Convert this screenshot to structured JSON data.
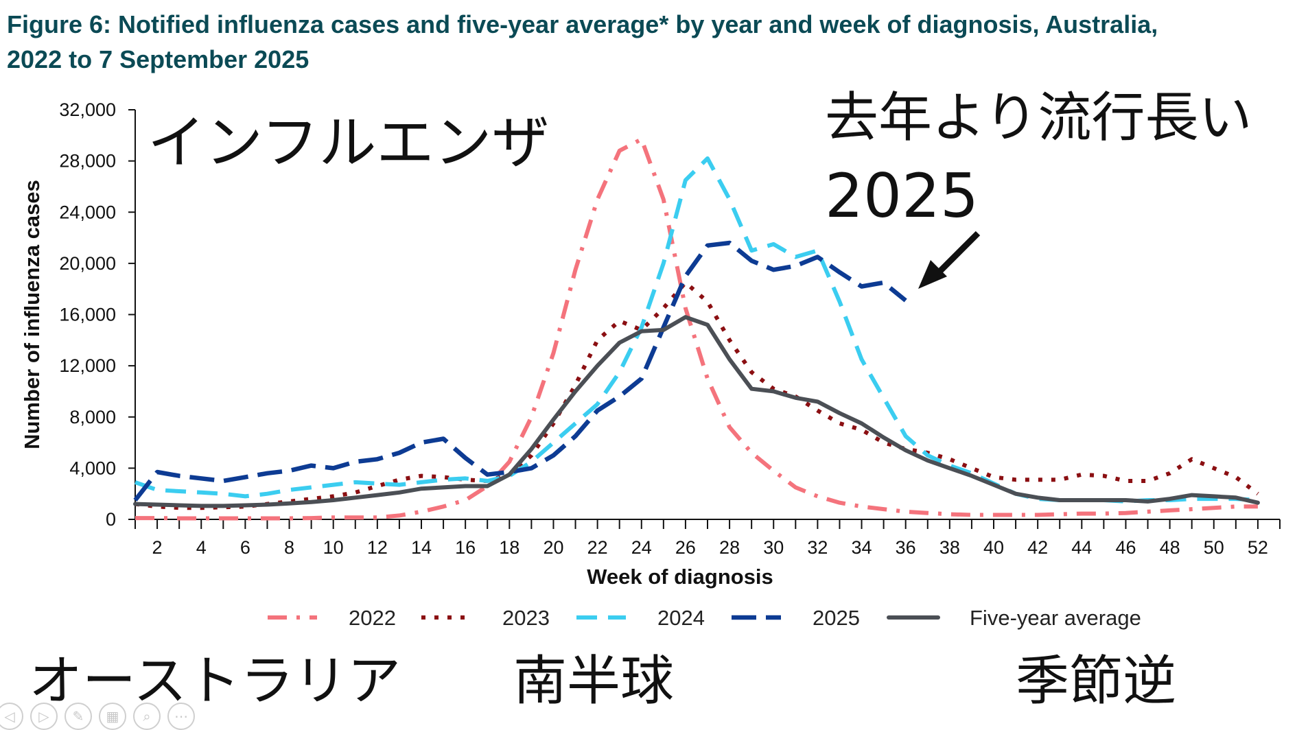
{
  "figure": {
    "title_line1": "Figure 6: Notified influenza cases and five-year average* by year and week of diagnosis, Australia,",
    "title_line2": "2022 to 7 September 2025"
  },
  "overlay": {
    "label_influenza": "インフルエンザ",
    "label_longer": "去年より流行長い",
    "label_2025": "2025",
    "label_australia": "オーストラリア",
    "label_southern": "南半球",
    "label_seasons": "季節逆"
  },
  "toolbar": {
    "icons": [
      "prev-icon",
      "next-icon",
      "pen-icon",
      "slides-icon",
      "zoom-icon",
      "more-icon"
    ],
    "glyphs": [
      "◁",
      "▷",
      "✎",
      "▦",
      "⌕",
      "⋯"
    ]
  },
  "colors": {
    "2022": "#f4737c",
    "2023": "#8b0f12",
    "2024": "#3bcdf0",
    "2025": "#0d3b93",
    "avg": "#4b4f55"
  },
  "chart_data": {
    "type": "line",
    "title": "Notified influenza cases and five-year average* by year and week of diagnosis, Australia, 2022 to 7 September 2025",
    "xlabel": "Week of diagnosis",
    "ylabel": "Number of influenza cases",
    "xlim": [
      1,
      52
    ],
    "ylim": [
      0,
      32000
    ],
    "xticks": [
      2,
      4,
      6,
      8,
      10,
      12,
      14,
      16,
      18,
      20,
      22,
      24,
      26,
      28,
      30,
      32,
      34,
      36,
      38,
      40,
      42,
      44,
      46,
      48,
      50,
      52
    ],
    "yticks": [
      0,
      4000,
      8000,
      12000,
      16000,
      20000,
      24000,
      28000,
      32000
    ],
    "ytick_labels": [
      "0",
      "4,000",
      "8,000",
      "12,000",
      "16,000",
      "20,000",
      "24,000",
      "28,000",
      "32,000"
    ],
    "legend_position": "bottom",
    "series": [
      {
        "name": "2022",
        "style": "dashdot",
        "x": [
          1,
          2,
          3,
          4,
          5,
          6,
          7,
          8,
          9,
          10,
          11,
          12,
          13,
          14,
          15,
          16,
          17,
          18,
          19,
          20,
          21,
          22,
          23,
          24,
          25,
          26,
          27,
          28,
          29,
          30,
          31,
          32,
          33,
          34,
          35,
          36,
          37,
          38,
          39,
          40,
          41,
          42,
          43,
          44,
          45,
          46,
          47,
          48,
          49,
          50,
          51,
          52
        ],
        "values": [
          100,
          100,
          80,
          80,
          80,
          80,
          80,
          80,
          100,
          150,
          150,
          150,
          300,
          600,
          1000,
          1500,
          2600,
          4500,
          8000,
          13000,
          19500,
          25000,
          28800,
          29700,
          25000,
          16500,
          11000,
          7200,
          5200,
          3800,
          2500,
          1800,
          1300,
          1000,
          800,
          600,
          500,
          400,
          350,
          350,
          350,
          350,
          400,
          450,
          450,
          500,
          600,
          700,
          800,
          900,
          1000,
          1000
        ]
      },
      {
        "name": "2023",
        "style": "dotted",
        "x": [
          1,
          2,
          3,
          4,
          5,
          6,
          7,
          8,
          9,
          10,
          11,
          12,
          13,
          14,
          15,
          16,
          17,
          18,
          19,
          20,
          21,
          22,
          23,
          24,
          25,
          26,
          27,
          28,
          29,
          30,
          31,
          32,
          33,
          34,
          35,
          36,
          37,
          38,
          39,
          40,
          41,
          42,
          43,
          44,
          45,
          46,
          47,
          48,
          49,
          50,
          51,
          52
        ],
        "values": [
          1200,
          1000,
          900,
          900,
          950,
          1000,
          1200,
          1400,
          1600,
          1800,
          2100,
          2600,
          3100,
          3400,
          3300,
          3100,
          3000,
          3500,
          5000,
          7500,
          10500,
          14000,
          15500,
          14800,
          16500,
          18500,
          17000,
          14000,
          11500,
          10200,
          9600,
          8500,
          7500,
          7000,
          6000,
          5500,
          5200,
          4700,
          4000,
          3300,
          3100,
          3100,
          3100,
          3500,
          3400,
          3000,
          3000,
          3600,
          4700,
          4000,
          3300,
          2000
        ]
      },
      {
        "name": "2024",
        "style": "dashed",
        "x": [
          1,
          2,
          3,
          4,
          5,
          6,
          7,
          8,
          9,
          10,
          11,
          12,
          13,
          14,
          15,
          16,
          17,
          18,
          19,
          20,
          21,
          22,
          23,
          24,
          25,
          26,
          27,
          28,
          29,
          30,
          31,
          32,
          33,
          34,
          35,
          36,
          37,
          38,
          39,
          40,
          41,
          42,
          43,
          44,
          45,
          46,
          47,
          48,
          49,
          50,
          51,
          52
        ],
        "values": [
          2900,
          2300,
          2200,
          2100,
          2000,
          1800,
          2000,
          2300,
          2500,
          2700,
          2900,
          2800,
          2700,
          2900,
          3100,
          3200,
          3000,
          3400,
          4500,
          6000,
          7500,
          9000,
          11500,
          15000,
          20000,
          26500,
          28200,
          25000,
          21000,
          21500,
          20500,
          21000,
          17000,
          12500,
          9500,
          6500,
          5000,
          4200,
          3600,
          2800,
          2000,
          1600,
          1500,
          1500,
          1500,
          1400,
          1500,
          1500,
          1600,
          1600,
          1600,
          1500
        ]
      },
      {
        "name": "2025",
        "style": "longdash",
        "x": [
          1,
          2,
          3,
          4,
          5,
          6,
          7,
          8,
          9,
          10,
          11,
          12,
          13,
          14,
          15,
          16,
          17,
          18,
          19,
          20,
          21,
          22,
          23,
          24,
          25,
          26,
          27,
          28,
          29,
          30,
          31,
          32,
          33,
          34,
          35,
          36
        ],
        "values": [
          1500,
          3700,
          3400,
          3200,
          3000,
          3300,
          3600,
          3800,
          4200,
          4000,
          4500,
          4700,
          5200,
          6000,
          6300,
          4800,
          3500,
          3700,
          4000,
          5000,
          6500,
          8500,
          9600,
          11000,
          15000,
          19000,
          21400,
          21600,
          20200,
          19500,
          19800,
          20500,
          19300,
          18200,
          18500,
          17100
        ]
      },
      {
        "name": "Five-year average",
        "style": "solid",
        "x": [
          1,
          2,
          3,
          4,
          5,
          6,
          7,
          8,
          9,
          10,
          11,
          12,
          13,
          14,
          15,
          16,
          17,
          18,
          19,
          20,
          21,
          22,
          23,
          24,
          25,
          26,
          27,
          28,
          29,
          30,
          31,
          32,
          33,
          34,
          35,
          36,
          37,
          38,
          39,
          40,
          41,
          42,
          43,
          44,
          45,
          46,
          47,
          48,
          49,
          50,
          51,
          52
        ],
        "values": [
          1200,
          1150,
          1100,
          1050,
          1050,
          1100,
          1150,
          1250,
          1350,
          1500,
          1700,
          1900,
          2100,
          2400,
          2500,
          2600,
          2600,
          3500,
          5500,
          7800,
          10000,
          12000,
          13800,
          14700,
          14800,
          15800,
          15200,
          12500,
          10200,
          10000,
          9500,
          9200,
          8300,
          7500,
          6400,
          5400,
          4600,
          4000,
          3400,
          2700,
          2000,
          1700,
          1500,
          1500,
          1500,
          1500,
          1400,
          1600,
          1900,
          1800,
          1700,
          1300
        ]
      }
    ]
  }
}
